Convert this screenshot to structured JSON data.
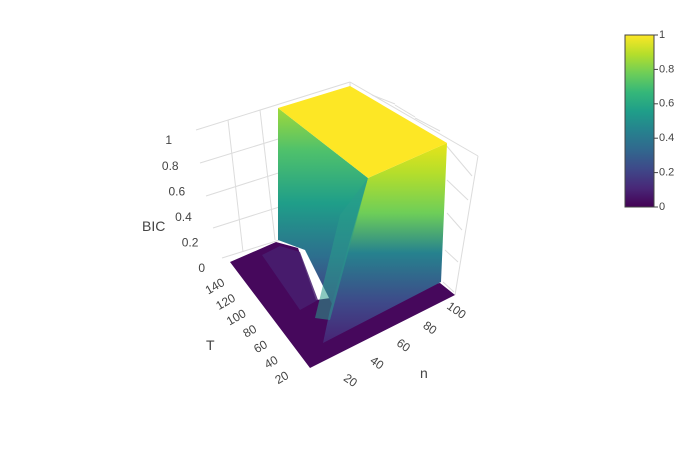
{
  "chart_data": {
    "type": "surface3d",
    "title": "",
    "colorscale": "Viridis",
    "axes": {
      "x": {
        "label": "n",
        "ticks": [
          "20",
          "40",
          "60",
          "80",
          "100"
        ]
      },
      "y": {
        "label": "T",
        "ticks": [
          "20",
          "40",
          "60",
          "80",
          "100",
          "120",
          "140"
        ]
      },
      "z": {
        "label": "BIC",
        "ticks": [
          "0",
          "0.2",
          "0.4",
          "0.6",
          "0.8",
          "1"
        ],
        "range": [
          0,
          1
        ]
      }
    },
    "colorbar": {
      "ticks": [
        "0",
        "0.2",
        "0.4",
        "0.6",
        "0.8",
        "1"
      ],
      "range": [
        0,
        1
      ]
    },
    "surface_summary": {
      "plateau_value": 1,
      "plateau_region": {
        "n_min": 40,
        "n_max": 100,
        "T_min": 40,
        "T_max": 150
      },
      "low_value": 0,
      "low_region": "n < 30 or T < 30"
    }
  },
  "colors": {
    "viridis": [
      "#440154",
      "#482878",
      "#3e4989",
      "#31688e",
      "#26828e",
      "#1f9e89",
      "#35b779",
      "#6ece58",
      "#b5de2b",
      "#fde725"
    ]
  }
}
